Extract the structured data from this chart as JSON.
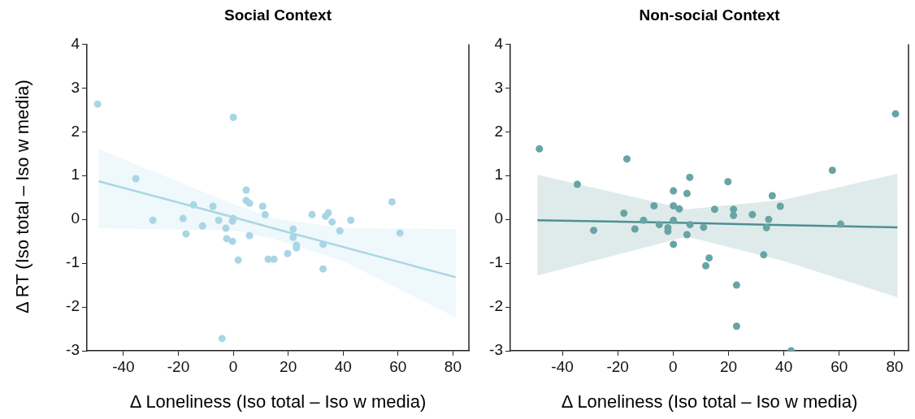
{
  "chart_data": [
    {
      "type": "scatter",
      "title": "Social Context",
      "xlabel": "Δ Loneliness (Iso total – Iso w media)",
      "ylabel": "Δ RT (Iso total – Iso w media)",
      "xlim": [
        -53.3,
        85.8
      ],
      "xticks": [
        -40,
        -20,
        0,
        20,
        40,
        60,
        80
      ],
      "ylim": [
        -3,
        4
      ],
      "yticks": [
        -3,
        -2,
        -1,
        0,
        1,
        2,
        3,
        4
      ],
      "grid": false,
      "legend": false,
      "marker": "circle",
      "series": [
        {
          "color": "#a9d6e5",
          "x": [
            -49.4,
            0,
            -35.5,
            -29.3,
            -18.3,
            -17.2,
            -14.5,
            -11.2,
            -7.4,
            -5.3,
            -2.7,
            -2.4,
            -0.3,
            0,
            -0.3,
            1.8,
            4.7,
            4.7,
            5.9,
            5.9,
            -4.1,
            10.7,
            11.6,
            12.7,
            14.8,
            19.8,
            21.8,
            21.8,
            23,
            23,
            28.7,
            33.6,
            34.6,
            36,
            32.7,
            32.7,
            38.8,
            42.8,
            57.8,
            60.7
          ],
          "values": [
            2.63,
            2.33,
            0.93,
            -0.02,
            0.02,
            -0.33,
            0.33,
            -0.15,
            0.3,
            -0.02,
            -0.2,
            -0.44,
            -0.04,
            0.02,
            -0.5,
            -0.93,
            0.67,
            0.43,
            0.37,
            -0.37,
            -2.72,
            0.3,
            0.11,
            -0.91,
            -0.91,
            -0.78,
            -0.22,
            -0.41,
            -0.59,
            -0.65,
            0.11,
            0.07,
            0.15,
            -0.06,
            -0.57,
            -1.13,
            -0.26,
            -0.02,
            0.4,
            -0.31
          ]
        },
        {
          "type": "line",
          "color": "#a9d6e5",
          "marker": "none",
          "x": [
            -49,
            0,
            15,
            40,
            81
          ],
          "values": [
            0.87,
            0.05,
            -0.21,
            -0.63,
            -1.32
          ],
          "lower": [
            -0.2,
            -0.25,
            -0.45,
            -0.95,
            -2.24
          ],
          "upper": [
            1.6,
            0.35,
            0.02,
            -0.2,
            -0.22
          ]
        }
      ]
    },
    {
      "type": "scatter",
      "title": "Non-social Context",
      "xlabel": "Δ Loneliness (Iso total – Iso w media)",
      "xlim": [
        -58.8,
        85
      ],
      "xticks": [
        -40,
        -20,
        0,
        20,
        40,
        60,
        80
      ],
      "ylim": [
        -3,
        4
      ],
      "yticks": [
        -3,
        -2,
        -1,
        0,
        1,
        2,
        3,
        4
      ],
      "grid": false,
      "legend": false,
      "marker": "circle",
      "series": [
        {
          "color": "#68a4a5",
          "x": [
            -48.3,
            -34.6,
            -16.7,
            -28.7,
            -17.8,
            -13.8,
            -10.7,
            -6.9,
            -5,
            -1.9,
            -1.9,
            0.1,
            0.1,
            0.1,
            0.1,
            2.2,
            5,
            6,
            5,
            6.1,
            11,
            13,
            11.8,
            15,
            19.8,
            21.8,
            21.8,
            28.6,
            35.8,
            38.7,
            34.5,
            33.7,
            32.7,
            22.9,
            22.9,
            42.6,
            57.5,
            60.5,
            80.3
          ],
          "values": [
            1.61,
            0.8,
            1.38,
            -0.25,
            0.14,
            -0.22,
            -0.02,
            0.31,
            -0.12,
            -0.19,
            -0.27,
            0.65,
            0.31,
            -0.02,
            -0.57,
            0.24,
            0.59,
            0.96,
            -0.35,
            -0.12,
            -0.18,
            -0.88,
            -1.06,
            0.23,
            0.86,
            0.23,
            0.09,
            0.11,
            0.54,
            0.3,
            0,
            -0.19,
            -0.81,
            -1.5,
            -2.44,
            -3,
            1.12,
            -0.11,
            2.41
          ]
        },
        {
          "type": "line",
          "color": "#4f8f91",
          "marker": "none",
          "x": [
            -49,
            5,
            40,
            81
          ],
          "values": [
            -0.02,
            -0.08,
            -0.13,
            -0.18
          ],
          "lower": [
            -1.28,
            -0.39,
            -0.95,
            -1.78
          ],
          "upper": [
            1.02,
            0.23,
            0.45,
            1.04
          ]
        }
      ]
    }
  ]
}
